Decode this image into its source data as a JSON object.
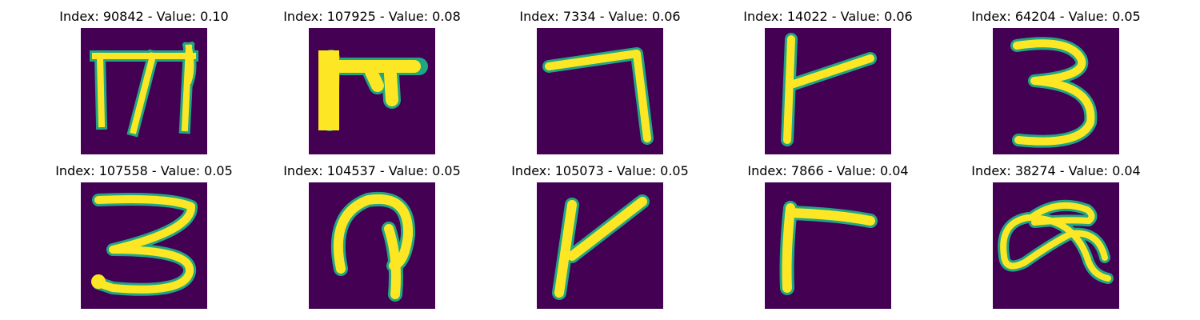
{
  "colors": {
    "background": "#440154",
    "stroke_edge": "#21a685",
    "stroke_core": "#fde725"
  },
  "panels": [
    {
      "title": "Index: 90842 - Value: 0.10",
      "glyph": "m-shaped-glyph"
    },
    {
      "title": "Index: 107925 - Value: 0.08",
      "glyph": "bold-m-shaped-glyph"
    },
    {
      "title": "Index: 7334 - Value: 0.06",
      "glyph": "seven-shaped-glyph"
    },
    {
      "title": "Index: 14022 - Value: 0.06",
      "glyph": "r-shaped-glyph"
    },
    {
      "title": "Index: 64204 - Value: 0.05",
      "glyph": "three-shaped-glyph"
    },
    {
      "title": "Index: 107558 - Value: 0.05",
      "glyph": "three-shaped-glyph"
    },
    {
      "title": "Index: 104537 - Value: 0.05",
      "glyph": "loop-shaped-glyph"
    },
    {
      "title": "Index: 105073 - Value: 0.05",
      "glyph": "v-r-shaped-glyph"
    },
    {
      "title": "Index: 7866 - Value: 0.04",
      "glyph": "r-shaped-glyph"
    },
    {
      "title": "Index: 38274 - Value: 0.04",
      "glyph": "alpha-shaped-glyph"
    }
  ]
}
